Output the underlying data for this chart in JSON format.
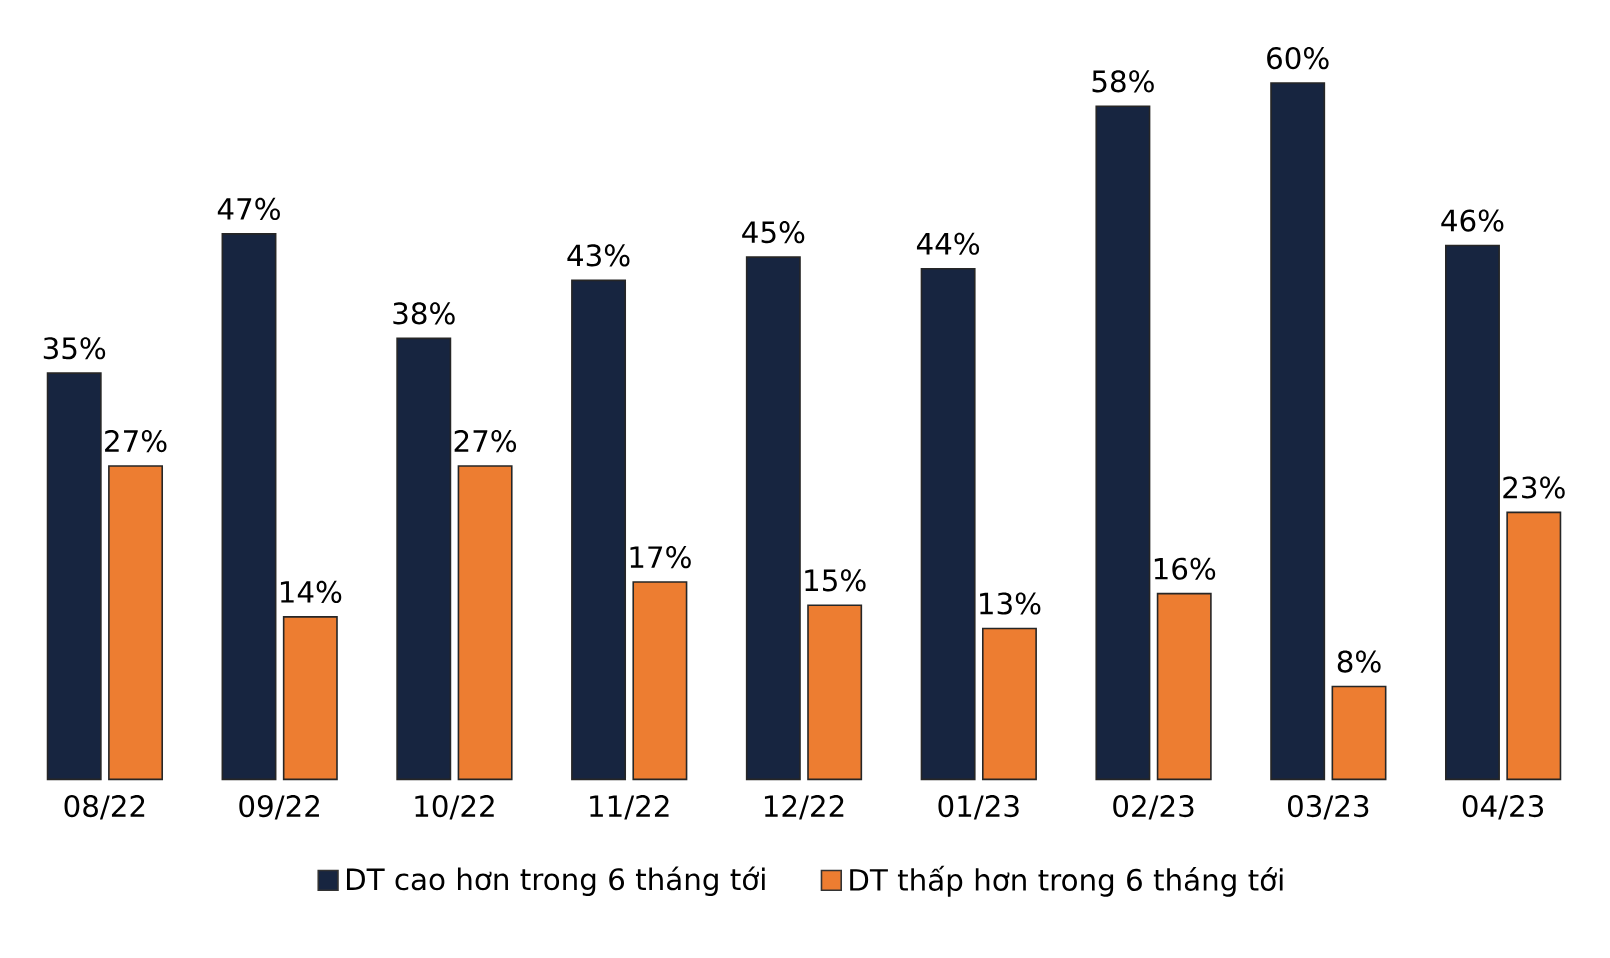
{
  "chart_data": {
    "type": "bar",
    "categories": [
      "08/22",
      "09/22",
      "10/22",
      "11/22",
      "12/22",
      "01/23",
      "02/23",
      "03/23",
      "04/23"
    ],
    "series": [
      {
        "name": "DT cao hơn trong 6 tháng tới",
        "color": "#172540",
        "values": [
          35,
          47,
          38,
          43,
          45,
          44,
          58,
          60,
          46
        ],
        "value_labels": [
          "35%",
          "47%",
          "38%",
          "43%",
          "45%",
          "44%",
          "58%",
          "60%",
          "46%"
        ]
      },
      {
        "name": "DT thấp hơn trong 6 tháng tới",
        "color": "#ed7d31",
        "values": [
          27,
          14,
          27,
          17,
          15,
          13,
          16,
          8,
          23
        ],
        "value_labels": [
          "27%",
          "14%",
          "27%",
          "17%",
          "15%",
          "13%",
          "16%",
          "8%",
          "23%"
        ]
      }
    ],
    "legend": "bottom"
  }
}
